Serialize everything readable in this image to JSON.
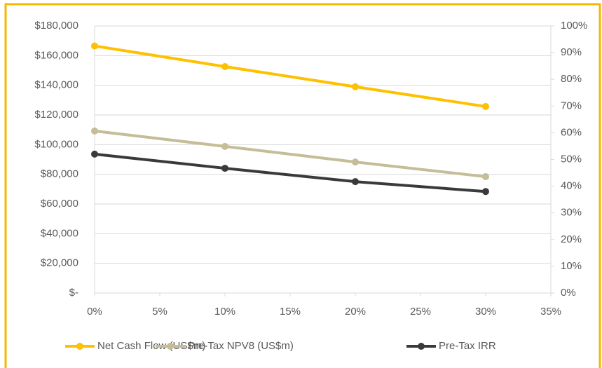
{
  "chart_data": {
    "type": "line",
    "x": [
      0,
      10,
      20,
      30
    ],
    "xlim": [
      0,
      35
    ],
    "xticks": [
      {
        "value": 0,
        "label": "0%"
      },
      {
        "value": 5,
        "label": "5%"
      },
      {
        "value": 10,
        "label": "10%"
      },
      {
        "value": 15,
        "label": "15%"
      },
      {
        "value": 20,
        "label": "20%"
      },
      {
        "value": 25,
        "label": "25%"
      },
      {
        "value": 30,
        "label": "30%"
      },
      {
        "value": 35,
        "label": "35%"
      }
    ],
    "ylim": [
      0,
      180000
    ],
    "yticks": [
      {
        "value": 0,
        "label": "$-"
      },
      {
        "value": 20000,
        "label": "$20,000"
      },
      {
        "value": 40000,
        "label": "$40,000"
      },
      {
        "value": 60000,
        "label": "$60,000"
      },
      {
        "value": 80000,
        "label": "$80,000"
      },
      {
        "value": 100000,
        "label": "$100,000"
      },
      {
        "value": 120000,
        "label": "$120,000"
      },
      {
        "value": 140000,
        "label": "$140,000"
      },
      {
        "value": 160000,
        "label": "$160,000"
      },
      {
        "value": 180000,
        "label": "$180,000"
      }
    ],
    "y2lim": [
      0,
      100
    ],
    "y2ticks": [
      {
        "value": 0,
        "label": "0%"
      },
      {
        "value": 10,
        "label": "10%"
      },
      {
        "value": 20,
        "label": "20%"
      },
      {
        "value": 30,
        "label": "30%"
      },
      {
        "value": 40,
        "label": "40%"
      },
      {
        "value": 50,
        "label": "50%"
      },
      {
        "value": 60,
        "label": "60%"
      },
      {
        "value": 70,
        "label": "70%"
      },
      {
        "value": 80,
        "label": "80%"
      },
      {
        "value": 90,
        "label": "90%"
      },
      {
        "value": 100,
        "label": "100%"
      }
    ],
    "grid": true,
    "legend": "bottom",
    "series": [
      {
        "name": "Net Cash Flow (US$m)",
        "color": "#ffc000",
        "values": [
          166500,
          152600,
          139000,
          125700
        ]
      },
      {
        "name": "Pre-Tax NPV8 (US$m)",
        "color": "#c4bd97",
        "values": [
          109200,
          98800,
          88300,
          78400
        ]
      },
      {
        "name": "Pre-Tax IRR",
        "color": "#3a3a3a",
        "axis": "y2",
        "values": [
          52,
          46.7,
          41.7,
          38
        ]
      }
    ]
  }
}
